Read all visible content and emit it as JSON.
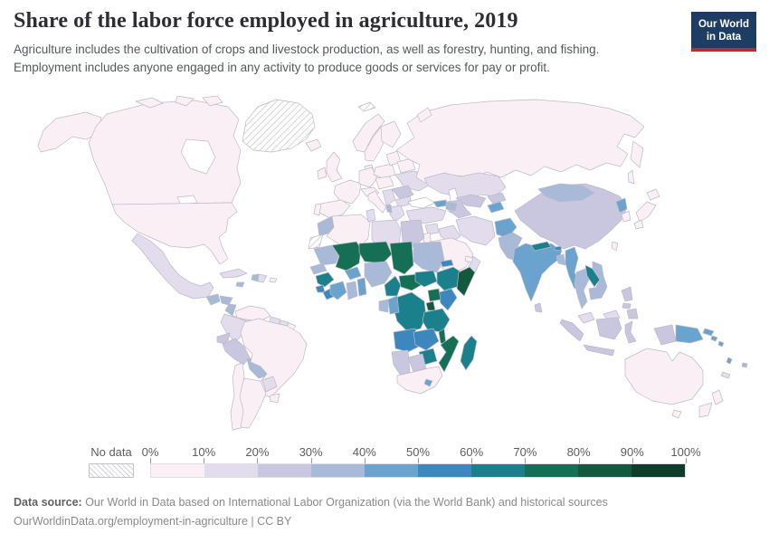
{
  "header": {
    "title": "Share of the labor force employed in agriculture, 2019",
    "subtitle_line1": "Agriculture includes the cultivation of crops and livestock production, as well as forestry, hunting, and fishing.",
    "subtitle_line2": "Employment includes anyone engaged in any activity to produce goods or services for pay or profit."
  },
  "logo": {
    "line1": "Our World",
    "line2": "in Data",
    "bg_color": "#1d3d63",
    "accent_color": "#b1332b"
  },
  "legend": {
    "no_data_label": "No data",
    "tick_labels": [
      "0%",
      "10%",
      "20%",
      "30%",
      "40%",
      "50%",
      "60%",
      "70%",
      "80%",
      "90%",
      "100%"
    ]
  },
  "footer": {
    "source_label": "Data source:",
    "source_text": " Our World in Data based on International Labor Organization (via the World Bank) and historical sources",
    "url_line": "OurWorldinData.org/employment-in-agriculture | CC BY"
  },
  "chart_data": {
    "type": "choropleth",
    "title": "Share of the labor force employed in agriculture",
    "year": 2019,
    "unit": "% of labor force",
    "projection": "world",
    "legend_bins": [
      {
        "range": "0-10%",
        "color": "#fbeff6"
      },
      {
        "range": "10-20%",
        "color": "#e2dcec"
      },
      {
        "range": "20-30%",
        "color": "#c9c6e0"
      },
      {
        "range": "30-40%",
        "color": "#a8bad8"
      },
      {
        "range": "40-50%",
        "color": "#6aa3cd"
      },
      {
        "range": "50-60%",
        "color": "#3c87be"
      },
      {
        "range": "60-70%",
        "color": "#19808c"
      },
      {
        "range": "70-80%",
        "color": "#156f54"
      },
      {
        "range": "80-90%",
        "color": "#14593e"
      },
      {
        "range": "90-100%",
        "color": "#0e3e2a"
      }
    ],
    "no_data_style": {
      "label": "No data",
      "pattern": "diagonal-hatch"
    },
    "countries": {
      "united-states": {
        "name": "United States",
        "range": "0-10%",
        "bin": 0
      },
      "canada": {
        "name": "Canada",
        "range": "0-10%",
        "bin": 0
      },
      "greenland": {
        "name": "Greenland",
        "range": "No data",
        "bin": null
      },
      "iceland": {
        "name": "Iceland",
        "range": "0-10%",
        "bin": 0
      },
      "mexico": {
        "name": "Mexico",
        "range": "10-20%",
        "bin": 1
      },
      "guatemala": {
        "name": "Guatemala",
        "range": "30-40%",
        "bin": 3
      },
      "honduras": {
        "name": "Honduras",
        "range": "30-40%",
        "bin": 3
      },
      "nicaragua": {
        "name": "Nicaragua",
        "range": "30-40%",
        "bin": 3
      },
      "costa-rica-panama": {
        "name": "Costa Rica & Panama",
        "range": "10-20%",
        "bin": 1
      },
      "cuba": {
        "name": "Cuba",
        "range": "10-20%",
        "bin": 1
      },
      "jamaica": {
        "name": "Jamaica",
        "range": "30-40%",
        "bin": 3
      },
      "haiti": {
        "name": "Haiti",
        "range": "30-40%",
        "bin": 3
      },
      "dominican-republic": {
        "name": "Dominican Republic",
        "range": "10-20%",
        "bin": 1
      },
      "puerto-rico": {
        "name": "Puerto Rico",
        "range": "0-10%",
        "bin": 0
      },
      "venezuela": {
        "name": "Venezuela",
        "range": "0-10%",
        "bin": 0
      },
      "colombia": {
        "name": "Colombia",
        "range": "10-20%",
        "bin": 1
      },
      "guyana": {
        "name": "Guyana",
        "range": "10-20%",
        "bin": 1
      },
      "suriname": {
        "name": "Suriname",
        "range": "10-20%",
        "bin": 1
      },
      "france": {
        "name": "France",
        "range": "0-10%",
        "bin": 0
      },
      "ecuador": {
        "name": "Ecuador",
        "range": "20-30%",
        "bin": 2
      },
      "peru": {
        "name": "Peru",
        "range": "20-30%",
        "bin": 2
      },
      "bolivia": {
        "name": "Bolivia",
        "range": "30-40%",
        "bin": 3
      },
      "brazil": {
        "name": "Brazil",
        "range": "0-10%",
        "bin": 0
      },
      "paraguay": {
        "name": "Paraguay",
        "range": "10-20%",
        "bin": 1
      },
      "uruguay": {
        "name": "Uruguay",
        "range": "0-10%",
        "bin": 0
      },
      "chile": {
        "name": "Chile",
        "range": "0-10%",
        "bin": 0
      },
      "argentina": {
        "name": "Argentina",
        "range": "0-10%",
        "bin": 0
      },
      "norway": {
        "name": "Norway",
        "range": "0-10%",
        "bin": 0
      },
      "sweden": {
        "name": "Sweden",
        "range": "0-10%",
        "bin": 0
      },
      "finland": {
        "name": "Finland",
        "range": "0-10%",
        "bin": 0
      },
      "denmark": {
        "name": "Denmark",
        "range": "0-10%",
        "bin": 0
      },
      "uk": {
        "name": "United Kingdom",
        "range": "0-10%",
        "bin": 0
      },
      "ireland": {
        "name": "Ireland",
        "range": "0-10%",
        "bin": 0
      },
      "spain": {
        "name": "Spain",
        "range": "0-10%",
        "bin": 0
      },
      "portugal": {
        "name": "Portugal",
        "range": "0-10%",
        "bin": 0
      },
      "germany": {
        "name": "Germany",
        "range": "0-10%",
        "bin": 0
      },
      "austria": {
        "name": "Austria & Switzerland",
        "range": "0-10%",
        "bin": 0
      },
      "italy": {
        "name": "Italy",
        "range": "0-10%",
        "bin": 0
      },
      "poland": {
        "name": "Poland",
        "range": "0-10%",
        "bin": 0
      },
      "central-europe": {
        "name": "Czechia, Slovakia & Hungary",
        "range": "0-10%",
        "bin": 0
      },
      "baltic-states": {
        "name": "Baltic states",
        "range": "0-10%",
        "bin": 0
      },
      "belarus": {
        "name": "Belarus",
        "range": "0-10%",
        "bin": 0
      },
      "ukraine": {
        "name": "Ukraine",
        "range": "10-20%",
        "bin": 1
      },
      "romania": {
        "name": "Romania",
        "range": "20-30%",
        "bin": 2
      },
      "western-balkans": {
        "name": "Western Balkans",
        "range": "10-20%",
        "bin": 1
      },
      "bulgaria": {
        "name": "Bulgaria",
        "range": "10-20%",
        "bin": 1
      },
      "greece": {
        "name": "Greece",
        "range": "10-20%",
        "bin": 1
      },
      "albania": {
        "name": "Albania",
        "range": "30-40%",
        "bin": 3
      },
      "turkey": {
        "name": "Turkey",
        "range": "10-20%",
        "bin": 1
      },
      "georgia": {
        "name": "Georgia",
        "range": "40-50%",
        "bin": 4
      },
      "azerbaijan": {
        "name": "Azerbaijan & Armenia",
        "range": "30-40%",
        "bin": 3
      },
      "russia": {
        "name": "Russia",
        "range": "0-10%",
        "bin": 0
      },
      "svalbard": {
        "name": "Svalbard",
        "range": "No data",
        "bin": null
      },
      "kazakhstan": {
        "name": "Kazakhstan",
        "range": "10-20%",
        "bin": 1
      },
      "uzbekistan": {
        "name": "Uzbekistan",
        "range": "20-30%",
        "bin": 2
      },
      "turkmenistan": {
        "name": "Turkmenistan",
        "range": "20-30%",
        "bin": 2
      },
      "kyrgyzstan": {
        "name": "Kyrgyzstan",
        "range": "20-30%",
        "bin": 2
      },
      "tajikistan": {
        "name": "Tajikistan",
        "range": "40-50%",
        "bin": 4
      },
      "syria": {
        "name": "Syria",
        "range": "10-20%",
        "bin": 1
      },
      "iraq": {
        "name": "Iraq",
        "range": "10-20%",
        "bin": 1
      },
      "israel-jordan": {
        "name": "Israel & Jordan",
        "range": "0-10%",
        "bin": 0
      },
      "saudi-arabia": {
        "name": "Saudi Arabia",
        "range": "0-10%",
        "bin": 0
      },
      "yemen": {
        "name": "Yemen",
        "range": "20-30%",
        "bin": 2
      },
      "oman": {
        "name": "Oman",
        "range": "10-20%",
        "bin": 1
      },
      "uae": {
        "name": "United Arab Emirates & Qatar",
        "range": "0-10%",
        "bin": 0
      },
      "iran": {
        "name": "Iran",
        "range": "10-20%",
        "bin": 1
      },
      "afghanistan": {
        "name": "Afghanistan",
        "range": "40-50%",
        "bin": 4
      },
      "pakistan": {
        "name": "Pakistan",
        "range": "30-40%",
        "bin": 3
      },
      "india": {
        "name": "India",
        "range": "40-50%",
        "bin": 4
      },
      "nepal": {
        "name": "Nepal",
        "range": "60-70%",
        "bin": 6
      },
      "bhutan": {
        "name": "Bhutan",
        "range": "50-60%",
        "bin": 5
      },
      "bangladesh": {
        "name": "Bangladesh",
        "range": "30-40%",
        "bin": 3
      },
      "sri-lanka": {
        "name": "Sri Lanka",
        "range": "20-30%",
        "bin": 2
      },
      "myanmar": {
        "name": "Myanmar",
        "range": "40-50%",
        "bin": 4
      },
      "thailand": {
        "name": "Thailand",
        "range": "30-40%",
        "bin": 3
      },
      "laos": {
        "name": "Laos",
        "range": "60-70%",
        "bin": 6
      },
      "vietnam": {
        "name": "Vietnam",
        "range": "30-40%",
        "bin": 3
      },
      "cambodia": {
        "name": "Cambodia",
        "range": "30-40%",
        "bin": 3
      },
      "malaysia": {
        "name": "Malaysia",
        "range": "10-20%",
        "bin": 1
      },
      "china": {
        "name": "China",
        "range": "20-30%",
        "bin": 2
      },
      "mongolia": {
        "name": "Mongolia",
        "range": "30-40%",
        "bin": 3
      },
      "north-korea": {
        "name": "North Korea",
        "range": "40-50%",
        "bin": 4
      },
      "south-korea": {
        "name": "South Korea",
        "range": "0-10%",
        "bin": 0
      },
      "japan": {
        "name": "Japan",
        "range": "0-10%",
        "bin": 0
      },
      "taiwan": {
        "name": "Taiwan",
        "range": "0-10%",
        "bin": 0
      },
      "indonesia": {
        "name": "Indonesia",
        "range": "20-30%",
        "bin": 2
      },
      "philippines": {
        "name": "Philippines",
        "range": "20-30%",
        "bin": 2
      },
      "papua-new-guinea": {
        "name": "Papua New Guinea",
        "range": "40-50%",
        "bin": 4
      },
      "australia": {
        "name": "Australia",
        "range": "0-10%",
        "bin": 0
      },
      "new-zealand": {
        "name": "New Zealand",
        "range": "0-10%",
        "bin": 0
      },
      "solomon-islands": {
        "name": "Solomon Islands",
        "range": "40-50%",
        "bin": 4
      },
      "vanuatu": {
        "name": "Vanuatu",
        "range": "40-50%",
        "bin": 4
      },
      "fiji": {
        "name": "Fiji",
        "range": "30-40%",
        "bin": 3
      },
      "new-caledonia": {
        "name": "New Caledonia",
        "range": "10-20%",
        "bin": 1
      },
      "morocco": {
        "name": "Morocco",
        "range": "30-40%",
        "bin": 3
      },
      "western-sahara": {
        "name": "Western Sahara",
        "range": "No data",
        "bin": null
      },
      "algeria": {
        "name": "Algeria",
        "range": "0-10%",
        "bin": 0
      },
      "tunisia": {
        "name": "Tunisia",
        "range": "10-20%",
        "bin": 1
      },
      "libya": {
        "name": "Libya",
        "range": "10-20%",
        "bin": 1
      },
      "egypt": {
        "name": "Egypt",
        "range": "20-30%",
        "bin": 2
      },
      "mauritania": {
        "name": "Mauritania",
        "range": "30-40%",
        "bin": 3
      },
      "mali": {
        "name": "Mali",
        "range": "70-80%",
        "bin": 7
      },
      "niger": {
        "name": "Niger",
        "range": "70-80%",
        "bin": 7
      },
      "chad": {
        "name": "Chad",
        "range": "70-80%",
        "bin": 7
      },
      "sudan": {
        "name": "Sudan",
        "range": "30-40%",
        "bin": 3
      },
      "eritrea": {
        "name": "Eritrea",
        "range": "50-60%",
        "bin": 5
      },
      "senegal": {
        "name": "Senegal & Gambia",
        "range": "30-40%",
        "bin": 3
      },
      "guinea": {
        "name": "Guinea",
        "range": "60-70%",
        "bin": 6
      },
      "sierra-leone": {
        "name": "Sierra Leone",
        "range": "50-60%",
        "bin": 5
      },
      "liberia": {
        "name": "Liberia",
        "range": "50-60%",
        "bin": 5
      },
      "burkina-faso": {
        "name": "Burkina Faso",
        "range": "40-50%",
        "bin": 4
      },
      "cote-divoire": {
        "name": "Côte d'Ivoire",
        "range": "40-50%",
        "bin": 4
      },
      "ghana": {
        "name": "Ghana",
        "range": "30-40%",
        "bin": 3
      },
      "togo-benin": {
        "name": "Togo & Benin",
        "range": "40-50%",
        "bin": 4
      },
      "nigeria": {
        "name": "Nigeria",
        "range": "30-40%",
        "bin": 3
      },
      "cameroon": {
        "name": "Cameroon",
        "range": "60-70%",
        "bin": 6
      },
      "central-african-republic": {
        "name": "Central African Republic",
        "range": "70-80%",
        "bin": 7
      },
      "south-sudan": {
        "name": "South Sudan",
        "range": "60-70%",
        "bin": 6
      },
      "ethiopia": {
        "name": "Ethiopia",
        "range": "60-70%",
        "bin": 6
      },
      "somalia": {
        "name": "Somalia",
        "range": "80-90%",
        "bin": 8
      },
      "kenya": {
        "name": "Kenya",
        "range": "50-60%",
        "bin": 5
      },
      "uganda": {
        "name": "Uganda",
        "range": "70-80%",
        "bin": 7
      },
      "rwanda-burundi": {
        "name": "Rwanda & Burundi",
        "range": "80-90%",
        "bin": 8
      },
      "drc": {
        "name": "Democratic Republic of Congo",
        "range": "60-70%",
        "bin": 6
      },
      "congo": {
        "name": "Congo",
        "range": "40-50%",
        "bin": 4
      },
      "gabon": {
        "name": "Gabon",
        "range": "30-40%",
        "bin": 3
      },
      "tanzania": {
        "name": "Tanzania",
        "range": "60-70%",
        "bin": 6
      },
      "angola": {
        "name": "Angola",
        "range": "50-60%",
        "bin": 5
      },
      "zambia": {
        "name": "Zambia",
        "range": "50-60%",
        "bin": 5
      },
      "malawi": {
        "name": "Malawi",
        "range": "70-80%",
        "bin": 7
      },
      "mozambique": {
        "name": "Mozambique",
        "range": "70-80%",
        "bin": 7
      },
      "zimbabwe": {
        "name": "Zimbabwe",
        "range": "60-70%",
        "bin": 6
      },
      "botswana": {
        "name": "Botswana",
        "range": "20-30%",
        "bin": 2
      },
      "namibia": {
        "name": "Namibia",
        "range": "20-30%",
        "bin": 2
      },
      "south-africa": {
        "name": "South Africa",
        "range": "0-10%",
        "bin": 0
      },
      "lesotho": {
        "name": "Lesotho",
        "range": "40-50%",
        "bin": 4
      },
      "madagascar": {
        "name": "Madagascar",
        "range": "60-70%",
        "bin": 6
      }
    }
  }
}
